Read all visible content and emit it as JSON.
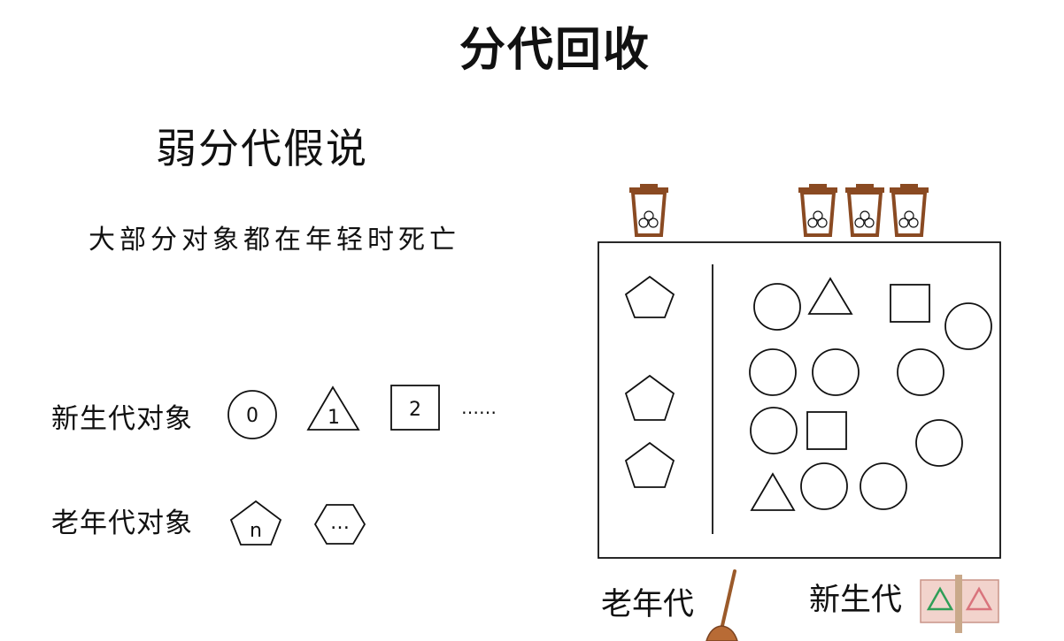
{
  "title": "分代回收",
  "subtitle": "弱分代假说",
  "hypothesis": "大部分对象都在年轻时死亡",
  "legend": {
    "young_label": "新生代对象",
    "young_symbols": [
      {
        "shape": "circle",
        "text": "0"
      },
      {
        "shape": "triangle",
        "text": "1"
      },
      {
        "shape": "square",
        "text": "2"
      }
    ],
    "young_more": "……",
    "old_label": "老年代对象",
    "old_symbols": [
      {
        "shape": "pentagon",
        "text": "n"
      },
      {
        "shape": "hexagon",
        "text": "…"
      }
    ]
  },
  "heap": {
    "old_gen_label": "老年代",
    "young_gen_label": "新生代",
    "old_objects": [
      "pentagon",
      "pentagon",
      "pentagon"
    ],
    "young_objects": [
      "circle",
      "triangle",
      "square",
      "circle",
      "circle",
      "circle",
      "circle",
      "circle",
      "square",
      "circle",
      "triangle",
      "circle",
      "circle"
    ],
    "old_bins": 1,
    "young_bins": 3
  },
  "icons": {
    "bin": "trash-bin-icon",
    "broom": "broom-icon",
    "recycle": "recycle-icon"
  },
  "colors": {
    "ink": "#111111",
    "bin": "#8a4a22",
    "broom": "#9b5a2a",
    "recycle_green": "#2f9e57",
    "recycle_red": "#d9747c",
    "recycle_bg": "#f2d3cc"
  }
}
